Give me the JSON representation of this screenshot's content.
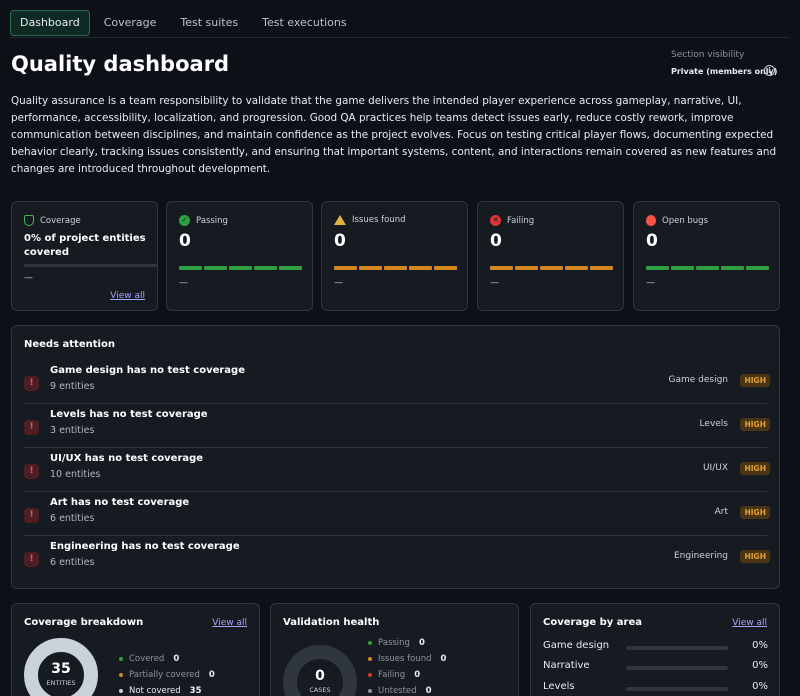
{
  "tabs": [
    {
      "label": "Dashboard",
      "active": true
    },
    {
      "label": "Coverage",
      "active": false
    },
    {
      "label": "Test suites",
      "active": false
    },
    {
      "label": "Test executions",
      "active": false
    }
  ],
  "header": {
    "title": "Quality dashboard",
    "visibility_label": "Section visibility",
    "visibility_value": "Private (members only)",
    "info_icon": "info-icon"
  },
  "description": "Quality assurance is a team responsibility to validate that the game delivers the intended player experience across gameplay, narrative, UI, performance, accessibility, localization, and progression. Good QA practices help teams detect issues early, reduce costly rework, improve communication between disciplines, and maintain confidence as the project evolves. Focus on testing critical player flows, documenting expected behavior clearly, tracking issues consistently, and ensuring that important systems, content, and interactions remain covered as new features and changes are introduced throughout development.",
  "stats": {
    "coverage": {
      "label": "Coverage",
      "text": "0% of project entities covered",
      "dash": "—",
      "view_all": "View all",
      "icon": "shield-icon",
      "progress": 0
    },
    "passing": {
      "label": "Passing",
      "value": "0",
      "dash": "—",
      "icon": "check-circle-icon",
      "color": "#2ea043"
    },
    "issues": {
      "label": "Issues found",
      "value": "0",
      "dash": "—",
      "icon": "warning-icon",
      "color": "#d4871f"
    },
    "failing": {
      "label": "Failing",
      "value": "0",
      "dash": "—",
      "icon": "x-circle-icon",
      "color": "#d4871f"
    },
    "bugs": {
      "label": "Open bugs",
      "value": "0",
      "dash": "—",
      "icon": "bug-icon",
      "color": "#2ea043"
    }
  },
  "attention": {
    "title": "Needs attention",
    "items": [
      {
        "title": "Game design has no test coverage",
        "sub": "9 entities",
        "area": "Game design",
        "priority": "HIGH"
      },
      {
        "title": "Levels has no test coverage",
        "sub": "3 entities",
        "area": "Levels",
        "priority": "HIGH"
      },
      {
        "title": "UI/UX has no test coverage",
        "sub": "10 entities",
        "area": "UI/UX",
        "priority": "HIGH"
      },
      {
        "title": "Art has no test coverage",
        "sub": "6 entities",
        "area": "Art",
        "priority": "HIGH"
      },
      {
        "title": "Engineering has no test coverage",
        "sub": "6 entities",
        "area": "Engineering",
        "priority": "HIGH"
      }
    ],
    "error_icon": "error-icon"
  },
  "coverage_breakdown": {
    "title": "Coverage breakdown",
    "view_all": "View all",
    "total": "35",
    "total_label": "ENTITIES",
    "legend": [
      {
        "label": "Covered",
        "value": "0",
        "color": "#2ea043"
      },
      {
        "label": "Partially covered",
        "value": "0",
        "color": "#d4871f"
      },
      {
        "label": "Not covered",
        "value": "35",
        "color": "#c9d1d9"
      }
    ]
  },
  "validation_health": {
    "title": "Validation health",
    "total": "0",
    "total_label": "CASES",
    "legend": [
      {
        "label": "Passing",
        "value": "0",
        "color": "#2ea043"
      },
      {
        "label": "Issues found",
        "value": "0",
        "color": "#d4871f"
      },
      {
        "label": "Failing",
        "value": "0",
        "color": "#da3633"
      },
      {
        "label": "Untested",
        "value": "0",
        "color": "#8b949e"
      }
    ]
  },
  "coverage_by_area": {
    "title": "Coverage by area",
    "view_all": "View all",
    "areas": [
      {
        "label": "Game design",
        "percent": "0%"
      },
      {
        "label": "Narrative",
        "percent": "0%"
      },
      {
        "label": "Levels",
        "percent": "0%"
      }
    ]
  }
}
